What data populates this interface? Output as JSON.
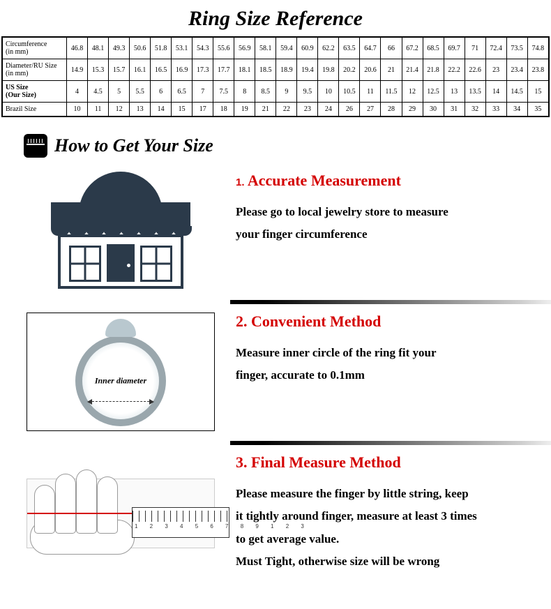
{
  "title": "Ring Size Reference",
  "table": {
    "row_labels": [
      "Circumference (in mm)",
      "Diameter/RU Size (in mm)",
      "US Size (Our Size)",
      "Brazil Size"
    ],
    "bold_rows": [
      false,
      false,
      true,
      false
    ],
    "data": [
      [
        "46.8",
        "48.1",
        "49.3",
        "50.6",
        "51.8",
        "53.1",
        "54.3",
        "55.6",
        "56.9",
        "58.1",
        "59.4",
        "60.9",
        "62.2",
        "63.5",
        "64.7",
        "66",
        "67.2",
        "68.5",
        "69.7",
        "71",
        "72.4",
        "73.5",
        "74.8"
      ],
      [
        "14.9",
        "15.3",
        "15.7",
        "16.1",
        "16.5",
        "16.9",
        "17.3",
        "17.7",
        "18.1",
        "18.5",
        "18.9",
        "19.4",
        "19.8",
        "20.2",
        "20.6",
        "21",
        "21.4",
        "21.8",
        "22.2",
        "22.6",
        "23",
        "23.4",
        "23.8"
      ],
      [
        "4",
        "4.5",
        "5",
        "5.5",
        "6",
        "6.5",
        "7",
        "7.5",
        "8",
        "8.5",
        "9",
        "9.5",
        "10",
        "10.5",
        "11",
        "11.5",
        "12",
        "12.5",
        "13",
        "13.5",
        "14",
        "14.5",
        "15"
      ],
      [
        "10",
        "11",
        "12",
        "13",
        "14",
        "15",
        "17",
        "18",
        "19",
        "21",
        "22",
        "23",
        "24",
        "26",
        "27",
        "28",
        "29",
        "30",
        "31",
        "32",
        "33",
        "34",
        "35"
      ]
    ]
  },
  "howto_heading": "How to Get Your Size",
  "sections": [
    {
      "num": "1.",
      "title": "Accurate Measurement",
      "lines": [
        "Please go to local jewelry store to measure",
        "your finger circumference"
      ]
    },
    {
      "num": "2.",
      "title": "Convenient Method",
      "lines": [
        "Measure inner circle of the ring fit your",
        "finger, accurate to 0.1mm"
      ]
    },
    {
      "num": "3.",
      "title": "Final Measure Method",
      "lines": [
        "Please measure the finger by little string, keep",
        "it tightly around finger, measure at least 3 times",
        "to get average value.",
        "Must Tight, otherwise size will be wrong"
      ]
    }
  ],
  "ring_label": "Inner diameter",
  "ruler_nums": "1 2 3 4 5 6 7 8 9 1 2 3",
  "colors": {
    "accent_red": "#d40000",
    "store_blue": "#2b3a4a"
  }
}
